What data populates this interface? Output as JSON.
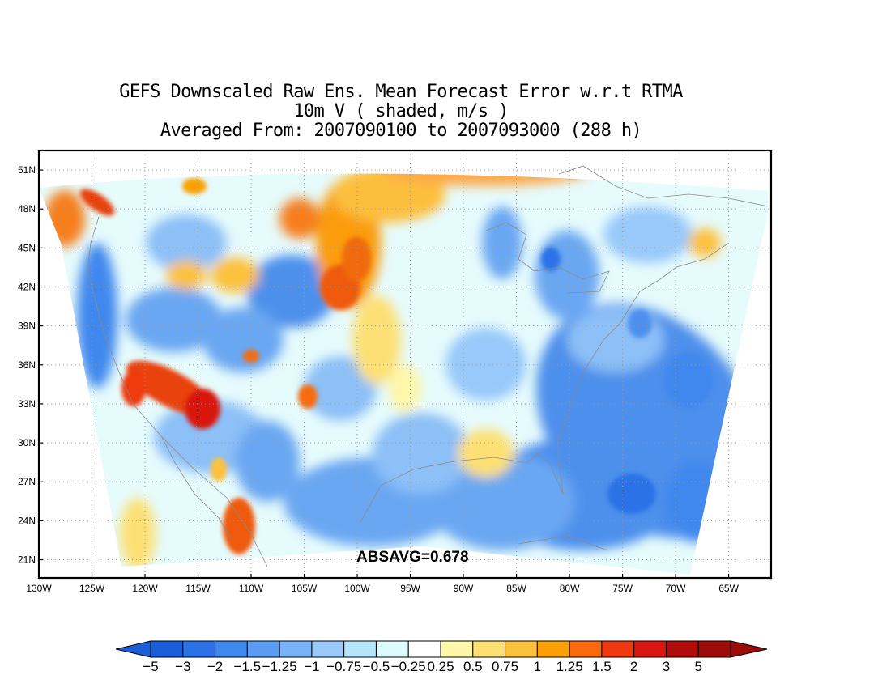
{
  "title": {
    "line1": "GEFS Downscaled Raw Ens. Mean Forecast Error w.r.t RTMA",
    "line2": "10m V ( shaded, m/s )",
    "line3": "Averaged From: 2007090100 to 2007093000 (288 h)"
  },
  "stat_label": "ABSAVG=0.678",
  "map": {
    "lon_range": [
      -130,
      -61
    ],
    "lat_range": [
      19.6,
      52.5
    ],
    "lon_ticks": [
      -130,
      -125,
      -120,
      -115,
      -110,
      -105,
      -100,
      -95,
      -90,
      -85,
      -80,
      -75,
      -70,
      -65
    ],
    "lon_tick_labels": [
      "130W",
      "125W",
      "120W",
      "115W",
      "110W",
      "105W",
      "100W",
      "95W",
      "90W",
      "85W",
      "80W",
      "75W",
      "70W",
      "65W"
    ],
    "lat_ticks": [
      21,
      24,
      27,
      30,
      33,
      36,
      39,
      42,
      45,
      48,
      51
    ],
    "lat_tick_labels": [
      "21N",
      "24N",
      "27N",
      "30N",
      "33N",
      "36N",
      "39N",
      "42N",
      "45N",
      "48N",
      "51N"
    ],
    "grid": "dotted"
  },
  "colorbar": {
    "labels": [
      "−5",
      "−3",
      "−2",
      "−1.5",
      "−1.25",
      "−1",
      "−0.75",
      "−0.5",
      "−0.25",
      "0.25",
      "0.5",
      "0.75",
      "1",
      "1.25",
      "1.5",
      "2",
      "3",
      "5"
    ],
    "colors": [
      "#1a5fd9",
      "#2a72e6",
      "#3f88ee",
      "#5a9cf2",
      "#78b2f6",
      "#98c9fa",
      "#b4e6fb",
      "#dcfbfc",
      "#ffffff",
      "#fef6a8",
      "#fde074",
      "#fcc13c",
      "#fba004",
      "#f86a0c",
      "#ef3a11",
      "#d91611",
      "#b00c0c",
      "#9c0a0a"
    ],
    "end_low": "#1a5fd9",
    "end_high": "#9c0a0a"
  }
}
